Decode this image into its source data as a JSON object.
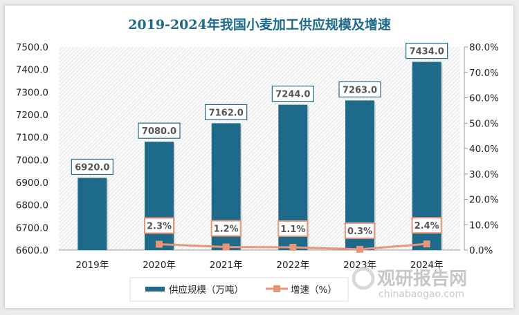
{
  "chart_data": {
    "type": "bar+line",
    "title": "2019-2024年我国小麦加工供应规模及增速",
    "categories": [
      "2019年",
      "2020年",
      "2021年",
      "2022年",
      "2023年",
      "2024年"
    ],
    "series": [
      {
        "name": "供应规模（万吨）",
        "type": "bar",
        "axis": "left",
        "color": "#1e6a8a",
        "values": [
          6920.0,
          7080.0,
          7162.0,
          7244.0,
          7263.0,
          7434.0
        ],
        "labels": [
          "6920.0",
          "7080.0",
          "7162.0",
          "7244.0",
          "7263.0",
          "7434.0"
        ]
      },
      {
        "name": "增速（%）",
        "type": "line",
        "axis": "right",
        "color": "#e8967a",
        "values": [
          null,
          2.3,
          1.2,
          1.1,
          0.3,
          2.4
        ],
        "labels": [
          "",
          "2.3%",
          "1.2%",
          "1.1%",
          "0.3%",
          "2.4%"
        ]
      }
    ],
    "y_left": {
      "range": [
        6600,
        7500
      ],
      "ticks": [
        "6600.0",
        "6700.0",
        "6800.0",
        "6900.0",
        "7000.0",
        "7100.0",
        "7200.0",
        "7300.0",
        "7400.0",
        "7500.0"
      ]
    },
    "y_right": {
      "range": [
        0,
        80
      ],
      "ticks": [
        "0.0%",
        "10.0%",
        "20.0%",
        "30.0%",
        "40.0%",
        "50.0%",
        "60.0%",
        "70.0%",
        "80.0%"
      ]
    },
    "grid": false,
    "legend": "bottom"
  },
  "watermark": {
    "text": "观研报告网",
    "url": "chinabaogao.com"
  }
}
